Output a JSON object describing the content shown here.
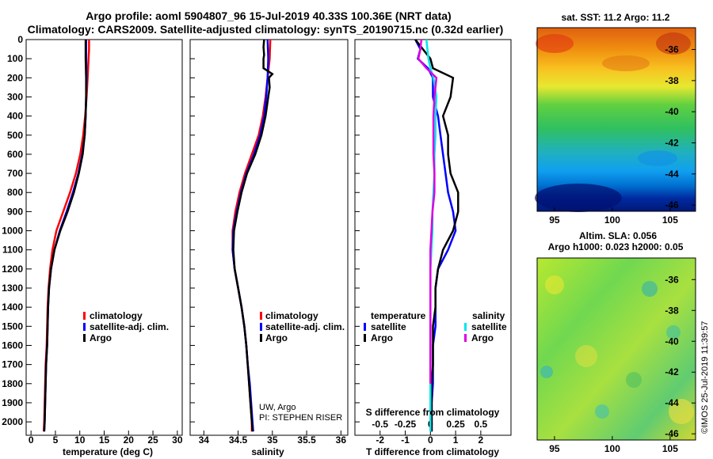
{
  "header": {
    "title_line1": "Argo profile: aoml 5904807_96 15-Jul-2019 40.33S 100.36E (NRT data)",
    "title_line2": "Climatology: CARS2009. Satellite-adjusted climatology: synTS_20190715.nc (0.32d earlier)"
  },
  "colors": {
    "climatology": "#ff0000",
    "satellite": "#0000ff",
    "argo": "#000000",
    "sat_salinity": "#00e5ee",
    "argo_salinity": "#e000e0"
  },
  "chart_data": [
    {
      "id": "temperature",
      "type": "line",
      "xlabel": "temperature (deg C)",
      "xlim": [
        -1,
        31
      ],
      "xticks": [
        "0",
        "5",
        "10",
        "15",
        "20",
        "25",
        "30"
      ],
      "ylim": [
        2070,
        0
      ],
      "yticks": [
        "0",
        "100",
        "200",
        "300",
        "400",
        "500",
        "600",
        "700",
        "800",
        "900",
        "1000",
        "1100",
        "1200",
        "1300",
        "1400",
        "1500",
        "1600",
        "1700",
        "1800",
        "1900",
        "2000"
      ],
      "legend": [
        "climatology",
        "satellite-adj. clim.",
        "Argo"
      ],
      "series": [
        {
          "name": "climatology",
          "color": "#ff0000",
          "depth": [
            0,
            50,
            100,
            200,
            300,
            400,
            500,
            600,
            700,
            800,
            900,
            1000,
            1100,
            1200,
            1300,
            1400,
            1500,
            1600,
            1700,
            1800,
            1900,
            2000,
            2050
          ],
          "values": [
            11.9,
            11.9,
            11.8,
            11.6,
            11.4,
            11.1,
            10.7,
            10.1,
            9.2,
            8.0,
            6.6,
            5.2,
            4.4,
            3.9,
            3.6,
            3.4,
            3.3,
            3.2,
            3.0,
            2.9,
            2.8,
            2.7,
            2.6
          ]
        },
        {
          "name": "satellite-adj. clim.",
          "color": "#0000ff",
          "depth": [
            0,
            50,
            100,
            200,
            300,
            400,
            500,
            600,
            700,
            800,
            900,
            1000,
            1100,
            1200,
            1300,
            1400,
            1500,
            1600,
            1700,
            1800,
            1900,
            2000,
            2050
          ],
          "values": [
            11.3,
            11.3,
            11.3,
            11.4,
            11.3,
            11.2,
            11.0,
            10.5,
            9.7,
            8.6,
            7.3,
            5.9,
            4.8,
            4.1,
            3.7,
            3.5,
            3.4,
            3.3,
            3.1,
            3.0,
            2.9,
            2.8,
            2.7
          ]
        },
        {
          "name": "Argo",
          "color": "#000000",
          "depth": [
            0,
            50,
            100,
            200,
            300,
            400,
            500,
            600,
            700,
            800,
            900,
            1000,
            1100,
            1200,
            1300,
            1400,
            1500,
            1600,
            1700,
            1800,
            1900,
            2000,
            2050
          ],
          "values": [
            11.2,
            11.2,
            11.2,
            11.3,
            11.3,
            11.2,
            11.0,
            10.6,
            9.8,
            8.8,
            7.5,
            6.0,
            4.8,
            4.1,
            3.7,
            3.5,
            3.4,
            3.3,
            3.1,
            3.0,
            2.9,
            2.8,
            2.7
          ]
        }
      ]
    },
    {
      "id": "salinity",
      "type": "line",
      "xlabel": "salinity",
      "xlim": [
        33.8,
        36.1
      ],
      "xticks": [
        "34",
        "34.5",
        "35",
        "35.5",
        "36"
      ],
      "ylim": [
        2070,
        0
      ],
      "legend": [
        "climatology",
        "satellite-adj. clim.",
        "Argo"
      ],
      "credit_line1": "UW, Argo",
      "credit_line2": "PI: STEPHEN RISER",
      "series": [
        {
          "name": "climatology",
          "color": "#ff0000",
          "depth": [
            0,
            100,
            200,
            300,
            400,
            500,
            600,
            700,
            800,
            900,
            1000,
            1100,
            1200,
            1300,
            1400,
            1500,
            1600,
            1700,
            1800,
            1900,
            2000,
            2050
          ],
          "values": [
            34.97,
            34.96,
            34.93,
            34.9,
            34.86,
            34.8,
            34.7,
            34.6,
            34.52,
            34.46,
            34.42,
            34.42,
            34.45,
            34.5,
            34.55,
            34.59,
            34.62,
            34.64,
            34.66,
            34.68,
            34.7,
            34.7
          ]
        },
        {
          "name": "satellite-adj. clim.",
          "color": "#0000ff",
          "depth": [
            0,
            100,
            200,
            300,
            400,
            500,
            600,
            700,
            800,
            900,
            1000,
            1100,
            1200,
            1300,
            1400,
            1500,
            1600,
            1700,
            1800,
            1900,
            2000,
            2050
          ],
          "values": [
            34.93,
            34.94,
            34.93,
            34.91,
            34.88,
            34.82,
            34.73,
            34.62,
            34.54,
            34.48,
            34.43,
            34.42,
            34.45,
            34.5,
            34.55,
            34.59,
            34.62,
            34.64,
            34.67,
            34.69,
            34.71,
            34.72
          ]
        },
        {
          "name": "Argo",
          "color": "#000000",
          "depth": [
            0,
            40,
            80,
            100,
            150,
            180,
            200,
            250,
            300,
            400,
            500,
            600,
            700,
            800,
            900,
            1000,
            1100,
            1200,
            1300,
            1400,
            1500,
            1600,
            1700,
            1800,
            1900,
            2000,
            2050
          ],
          "values": [
            34.88,
            34.87,
            34.88,
            34.87,
            34.87,
            35.0,
            34.95,
            34.96,
            34.94,
            34.9,
            34.84,
            34.75,
            34.63,
            34.55,
            34.49,
            34.44,
            34.43,
            34.45,
            34.5,
            34.55,
            34.59,
            34.62,
            34.64,
            34.66,
            34.68,
            34.7,
            34.71
          ]
        }
      ]
    },
    {
      "id": "difference",
      "type": "line",
      "xlabel": "T difference from climatology",
      "xlabel_top": "S difference from climatology",
      "xlim": [
        -3,
        3.2
      ],
      "xticks": [
        "-2",
        "-1",
        "0",
        "1",
        "2"
      ],
      "xticks_top": [
        "-0.5",
        "-0.25",
        "0",
        "0.25",
        "0.5"
      ],
      "ylim": [
        2070,
        0
      ],
      "legend_temperature_title": "temperature",
      "legend_salinity_title": "salinity",
      "legend_temperature": [
        "satellite",
        "Argo"
      ],
      "legend_salinity": [
        "satellite",
        "Argo"
      ],
      "series": [
        {
          "name": "T satellite",
          "color": "#0000ff",
          "depth": [
            0,
            50,
            100,
            150,
            200,
            300,
            400,
            500,
            600,
            700,
            800,
            900,
            1000,
            1100,
            1200,
            1300,
            1400,
            1500,
            1600,
            1700,
            1800,
            1900,
            2000,
            2050
          ],
          "values": [
            -0.6,
            -0.4,
            -0.5,
            -0.1,
            0.1,
            0.1,
            0.3,
            0.4,
            0.5,
            0.6,
            0.7,
            0.9,
            1.0,
            0.7,
            0.3,
            0.2,
            0.2,
            0.2,
            0.1,
            0.1,
            0.1,
            0.05,
            0.05,
            0.05
          ]
        },
        {
          "name": "T Argo",
          "color": "#000000",
          "depth": [
            0,
            50,
            100,
            150,
            200,
            300,
            400,
            500,
            600,
            700,
            800,
            900,
            1000,
            1100,
            1200,
            1300,
            1400,
            1500,
            1600,
            1700,
            1800,
            1900,
            2000,
            2050
          ],
          "values": [
            -0.6,
            -0.3,
            0,
            0.1,
            0.9,
            0.8,
            0.5,
            0.7,
            0.7,
            0.8,
            1.1,
            1.1,
            0.9,
            0.5,
            0.3,
            0.2,
            0.2,
            0.1,
            0.1,
            0.1,
            0.05,
            0.05,
            0.05,
            0.05
          ]
        },
        {
          "name": "S satellite",
          "color": "#00e5ee",
          "depth": [
            0,
            50,
            100,
            150,
            200,
            300,
            400,
            500,
            600,
            700,
            800,
            900,
            1000,
            1100,
            1200,
            1300,
            1400,
            1500,
            1600,
            1700,
            1800,
            1900,
            2000,
            2050
          ],
          "values": [
            -0.04,
            -0.03,
            -0.02,
            0,
            0.03,
            0.06,
            0.05,
            0.05,
            0.04,
            0.04,
            0.03,
            0.02,
            0.02,
            0.01,
            0,
            0,
            0,
            0,
            0,
            0,
            0,
            0,
            0,
            0
          ]
        },
        {
          "name": "S Argo",
          "color": "#e000e0",
          "depth": [
            0,
            50,
            100,
            150,
            200,
            300,
            400,
            500,
            600,
            700,
            800,
            900,
            1000,
            1100,
            1200,
            1300,
            1400,
            1500,
            1600,
            1700,
            1800
          ],
          "values": [
            -0.09,
            -0.1,
            -0.12,
            -0.04,
            0.06,
            0.04,
            0.03,
            0.03,
            0.03,
            0.04,
            0.04,
            0.02,
            0.01,
            0,
            0,
            0,
            0,
            0,
            0,
            0,
            0
          ]
        }
      ]
    },
    {
      "id": "sst_map",
      "type": "heatmap",
      "title": "sat. SST: 11.2 Argo: 11.2",
      "xticks": [
        "95",
        "100",
        "105"
      ],
      "yticks": [
        "-36",
        "-38",
        "-40",
        "-42",
        "-44",
        "-46"
      ],
      "xlim": [
        93.5,
        107.2
      ],
      "ylim": [
        -46.4,
        -34.6
      ]
    },
    {
      "id": "sla_map",
      "type": "heatmap",
      "title_line1": "Altim. SLA: 0.056",
      "title_line2": "Argo h1000: 0.023 h2000: 0.05",
      "xticks": [
        "95",
        "100",
        "105"
      ],
      "yticks": [
        "-36",
        "-38",
        "-40",
        "-42",
        "-44",
        "-46"
      ],
      "xlim": [
        93.5,
        107.2
      ],
      "ylim": [
        -46.4,
        -34.6
      ]
    }
  ],
  "footer": {
    "stamp": "©IMOS 25-Jul-2019 11:39:57"
  }
}
